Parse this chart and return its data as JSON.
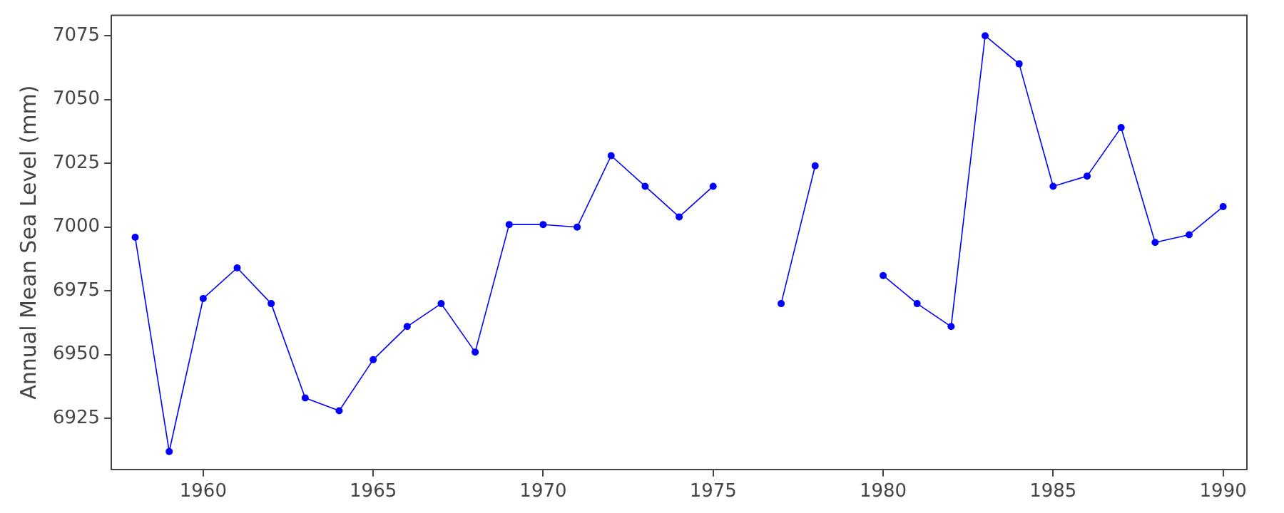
{
  "chart_data": {
    "type": "line",
    "ylabel": "Annual Mean Sea Level (mm)",
    "x": [
      1958,
      1959,
      1960,
      1961,
      1962,
      1963,
      1964,
      1965,
      1966,
      1967,
      1968,
      1969,
      1970,
      1971,
      1972,
      1973,
      1974,
      1975,
      1976,
      1977,
      1978,
      1979,
      1980,
      1981,
      1982,
      1983,
      1984,
      1985,
      1986,
      1987,
      1988,
      1989,
      1990
    ],
    "series": [
      {
        "color": "#0000ff",
        "values": [
          6996,
          6912,
          6972,
          6984,
          6970,
          6933,
          6928,
          6948,
          6961,
          6970,
          6951,
          7001,
          7001,
          7000,
          7028,
          7016,
          7004,
          7016,
          null,
          6970,
          7024,
          null,
          6981,
          6970,
          6961,
          7075,
          7064,
          7016,
          7020,
          7039,
          6994,
          6997,
          7008
        ]
      }
    ],
    "xlim": [
      1957.3,
      1990.7
    ],
    "xticks": [
      1960,
      1965,
      1970,
      1975,
      1980,
      1985,
      1990
    ],
    "ylim": [
      6905,
      7083
    ],
    "yticks": [
      6925,
      6950,
      6975,
      7000,
      7025,
      7050,
      7075
    ],
    "grid": false,
    "legend": false,
    "marker": "circle",
    "line_style": "solid"
  }
}
